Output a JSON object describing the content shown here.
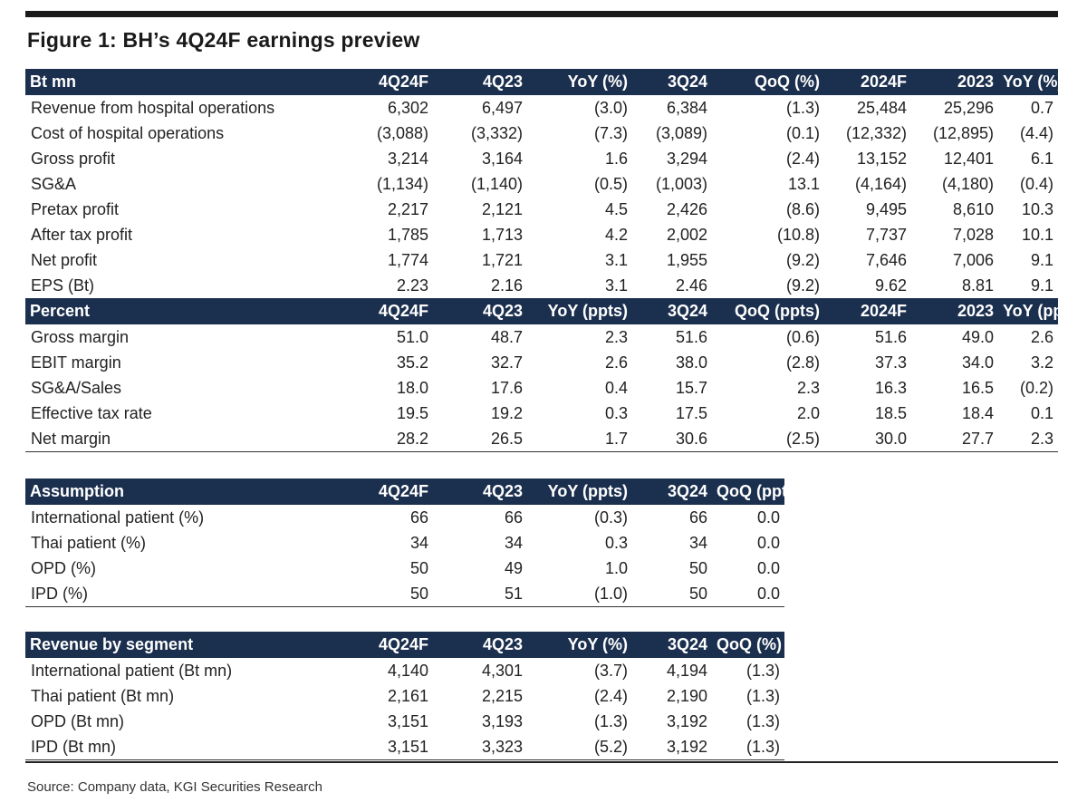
{
  "figure_title": "Figure 1: BH’s 4Q24F earnings preview",
  "table_main": {
    "header": [
      "Bt mn",
      "4Q24F",
      "4Q23",
      "YoY (%)",
      "3Q24",
      "QoQ (%)",
      "2024F",
      "2023",
      "YoY (%)"
    ],
    "rows": [
      [
        "Revenue from hospital operations",
        "6,302",
        "6,497",
        "(3.0)",
        "6,384",
        "(1.3)",
        "25,484",
        "25,296",
        "0.7"
      ],
      [
        "Cost of hospital operations",
        "(3,088)",
        "(3,332)",
        "(7.3)",
        "(3,089)",
        "(0.1)",
        "(12,332)",
        "(12,895)",
        "(4.4)"
      ],
      [
        "Gross profit",
        "3,214",
        "3,164",
        "1.6",
        "3,294",
        "(2.4)",
        "13,152",
        "12,401",
        "6.1"
      ],
      [
        "SG&A",
        "(1,134)",
        "(1,140)",
        "(0.5)",
        "(1,003)",
        "13.1",
        "(4,164)",
        "(4,180)",
        "(0.4)"
      ],
      [
        "Pretax profit",
        "2,217",
        "2,121",
        "4.5",
        "2,426",
        "(8.6)",
        "9,495",
        "8,610",
        "10.3"
      ],
      [
        "After tax profit",
        "1,785",
        "1,713",
        "4.2",
        "2,002",
        "(10.8)",
        "7,737",
        "7,028",
        "10.1"
      ],
      [
        "Net profit",
        "1,774",
        "1,721",
        "3.1",
        "1,955",
        "(9.2)",
        "7,646",
        "7,006",
        "9.1"
      ],
      [
        "EPS (Bt)",
        "2.23",
        "2.16",
        "3.1",
        "2.46",
        "(9.2)",
        "9.62",
        "8.81",
        "9.1"
      ]
    ]
  },
  "table_percent": {
    "header": [
      "Percent",
      "4Q24F",
      "4Q23",
      "YoY (ppts)",
      "3Q24",
      "QoQ (ppts)",
      "2024F",
      "2023",
      "YoY (ppts)"
    ],
    "rows": [
      [
        "Gross margin",
        "51.0",
        "48.7",
        "2.3",
        "51.6",
        "(0.6)",
        "51.6",
        "49.0",
        "2.6"
      ],
      [
        "EBIT margin",
        "35.2",
        "32.7",
        "2.6",
        "38.0",
        "(2.8)",
        "37.3",
        "34.0",
        "3.2"
      ],
      [
        "SG&A/Sales",
        "18.0",
        "17.6",
        "0.4",
        "15.7",
        "2.3",
        "16.3",
        "16.5",
        "(0.2)"
      ],
      [
        "Effective tax rate",
        "19.5",
        "19.2",
        "0.3",
        "17.5",
        "2.0",
        "18.5",
        "18.4",
        "0.1"
      ],
      [
        "Net margin",
        "28.2",
        "26.5",
        "1.7",
        "30.6",
        "(2.5)",
        "30.0",
        "27.7",
        "2.3"
      ]
    ]
  },
  "table_assumption": {
    "header": [
      "Assumption",
      "4Q24F",
      "4Q23",
      "YoY (ppts)",
      "3Q24",
      "QoQ (ppts)"
    ],
    "rows": [
      [
        "International patient (%)",
        "66",
        "66",
        "(0.3)",
        "66",
        "0.0"
      ],
      [
        "Thai patient (%)",
        "34",
        "34",
        "0.3",
        "34",
        "0.0"
      ],
      [
        "OPD (%)",
        "50",
        "49",
        "1.0",
        "50",
        "0.0"
      ],
      [
        "IPD (%)",
        "50",
        "51",
        "(1.0)",
        "50",
        "0.0"
      ]
    ]
  },
  "table_segment": {
    "header": [
      "Revenue by segment",
      "4Q24F",
      "4Q23",
      "YoY (%)",
      "3Q24",
      "QoQ (%)"
    ],
    "rows": [
      [
        "International patient (Bt mn)",
        "4,140",
        "4,301",
        "(3.7)",
        "4,194",
        "(1.3)"
      ],
      [
        "Thai patient (Bt mn)",
        "2,161",
        "2,215",
        "(2.4)",
        "2,190",
        "(1.3)"
      ],
      [
        "OPD (Bt mn)",
        "3,151",
        "3,193",
        "(1.3)",
        "3,192",
        "(1.3)"
      ],
      [
        "IPD (Bt mn)",
        "3,151",
        "3,323",
        "(5.2)",
        "3,192",
        "(1.3)"
      ]
    ]
  },
  "source": "Source: Company data, KGI Securities Research"
}
